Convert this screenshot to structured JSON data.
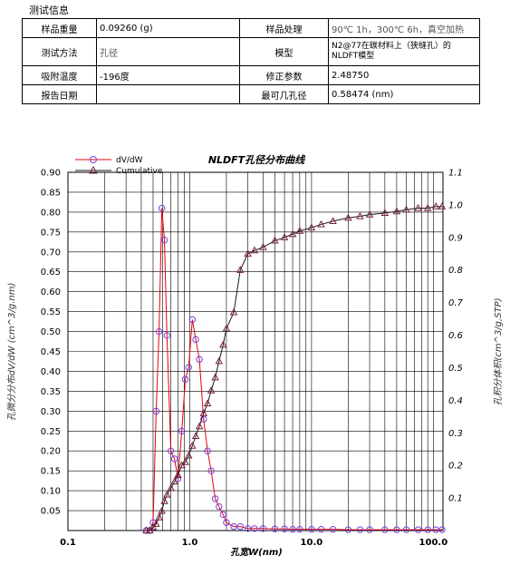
{
  "section_title": "测试信息",
  "info_rows": [
    {
      "l1": "样品重量",
      "v1": "0.09260 (g)",
      "l2": "样品处理",
      "v2": "90℃ 1h，300℃ 6h，真空加热"
    },
    {
      "l1": "测试方法",
      "v1": "孔径",
      "l2": "模型",
      "v2": "N2@77在碳材料上（狭缝孔）的NLDFT模型"
    },
    {
      "l1": "吸附温度",
      "v1": "-196度",
      "l2": "修正参数",
      "v2": "2.48750"
    },
    {
      "l1": "报告日期",
      "v1": "",
      "l2": "最可几孔径",
      "v2": "0.58474 (nm)"
    }
  ],
  "chart_data": {
    "type": "line",
    "title": "NLDFT孔径分布曲线",
    "xlabel": "孔宽W(nm)",
    "ylabel_left": "孔微分分布dV/dW (cm^3/g.nm)",
    "ylabel_right": "孔积分体积(cm^3/g,STP)",
    "xscale": "log",
    "xlim": [
      0.1,
      120
    ],
    "ylim_left": [
      0,
      0.9
    ],
    "ylim_right": [
      0,
      1.1
    ],
    "x_ticks": [
      {
        "v": 0.1,
        "label": "0.1"
      },
      {
        "v": 1,
        "label": "1.0"
      },
      {
        "v": 10,
        "label": "10.0"
      },
      {
        "v": 100,
        "label": "100.0"
      }
    ],
    "y_left_ticks": [
      "0.05",
      "0.10",
      "0.15",
      "0.20",
      "0.25",
      "0.30",
      "0.35",
      "0.40",
      "0.45",
      "0.50",
      "0.55",
      "0.60",
      "0.65",
      "0.70",
      "0.75",
      "0.80",
      "0.85",
      "0.90"
    ],
    "y_right_ticks": [
      "0.1",
      "0.2",
      "0.3",
      "0.4",
      "0.5",
      "0.6",
      "0.7",
      "0.8",
      "0.9",
      "1.0",
      "1.1"
    ],
    "grid": true,
    "legend_position": "top-left",
    "series": [
      {
        "name": "dV/dW",
        "axis": "left",
        "color": "#e8000b",
        "marker": "circle",
        "marker_color": "#7a3fe0",
        "x": [
          0.44,
          0.47,
          0.5,
          0.53,
          0.56,
          0.59,
          0.62,
          0.65,
          0.7,
          0.75,
          0.8,
          0.86,
          0.92,
          0.98,
          1.05,
          1.12,
          1.2,
          1.3,
          1.4,
          1.5,
          1.62,
          1.74,
          1.88,
          2.0,
          2.3,
          2.6,
          3.0,
          3.4,
          4.0,
          5.0,
          6.0,
          7.0,
          8.0,
          10.0,
          12.0,
          15.0,
          20.0,
          25.0,
          30.0,
          40.0,
          50.0,
          60.0,
          75.0,
          90.0,
          105.0,
          118.0
        ],
        "y": [
          0.0,
          0.0,
          0.02,
          0.3,
          0.5,
          0.81,
          0.73,
          0.49,
          0.2,
          0.18,
          0.13,
          0.25,
          0.38,
          0.41,
          0.53,
          0.48,
          0.43,
          0.28,
          0.2,
          0.15,
          0.08,
          0.06,
          0.04,
          0.02,
          0.01,
          0.01,
          0.005,
          0.005,
          0.005,
          0.004,
          0.004,
          0.003,
          0.003,
          0.003,
          0.003,
          0.003,
          0.002,
          0.002,
          0.002,
          0.002,
          0.002,
          0.002,
          0.002,
          0.002,
          0.002,
          0.002
        ]
      },
      {
        "name": "Cumulative",
        "axis": "right",
        "color": "#1a1a1a",
        "marker": "triangle",
        "marker_color": "#7a1f3a",
        "x": [
          0.44,
          0.47,
          0.5,
          0.53,
          0.56,
          0.59,
          0.62,
          0.65,
          0.7,
          0.75,
          0.8,
          0.86,
          0.92,
          0.98,
          1.05,
          1.12,
          1.2,
          1.3,
          1.4,
          1.5,
          1.62,
          1.74,
          1.88,
          2.0,
          2.3,
          2.6,
          3.0,
          3.4,
          4.0,
          5.0,
          6.0,
          7.0,
          8.0,
          10.0,
          12.0,
          15.0,
          20.0,
          25.0,
          30.0,
          40.0,
          50.0,
          60.0,
          75.0,
          90.0,
          105.0,
          118.0
        ],
        "y": [
          0.0,
          0.0,
          0.01,
          0.02,
          0.04,
          0.06,
          0.09,
          0.11,
          0.13,
          0.15,
          0.17,
          0.2,
          0.21,
          0.23,
          0.26,
          0.29,
          0.32,
          0.36,
          0.39,
          0.43,
          0.47,
          0.52,
          0.57,
          0.62,
          0.67,
          0.8,
          0.85,
          0.86,
          0.87,
          0.89,
          0.9,
          0.91,
          0.92,
          0.93,
          0.94,
          0.95,
          0.96,
          0.965,
          0.97,
          0.975,
          0.98,
          0.985,
          0.99,
          0.99,
          0.995,
          0.995
        ]
      }
    ]
  }
}
